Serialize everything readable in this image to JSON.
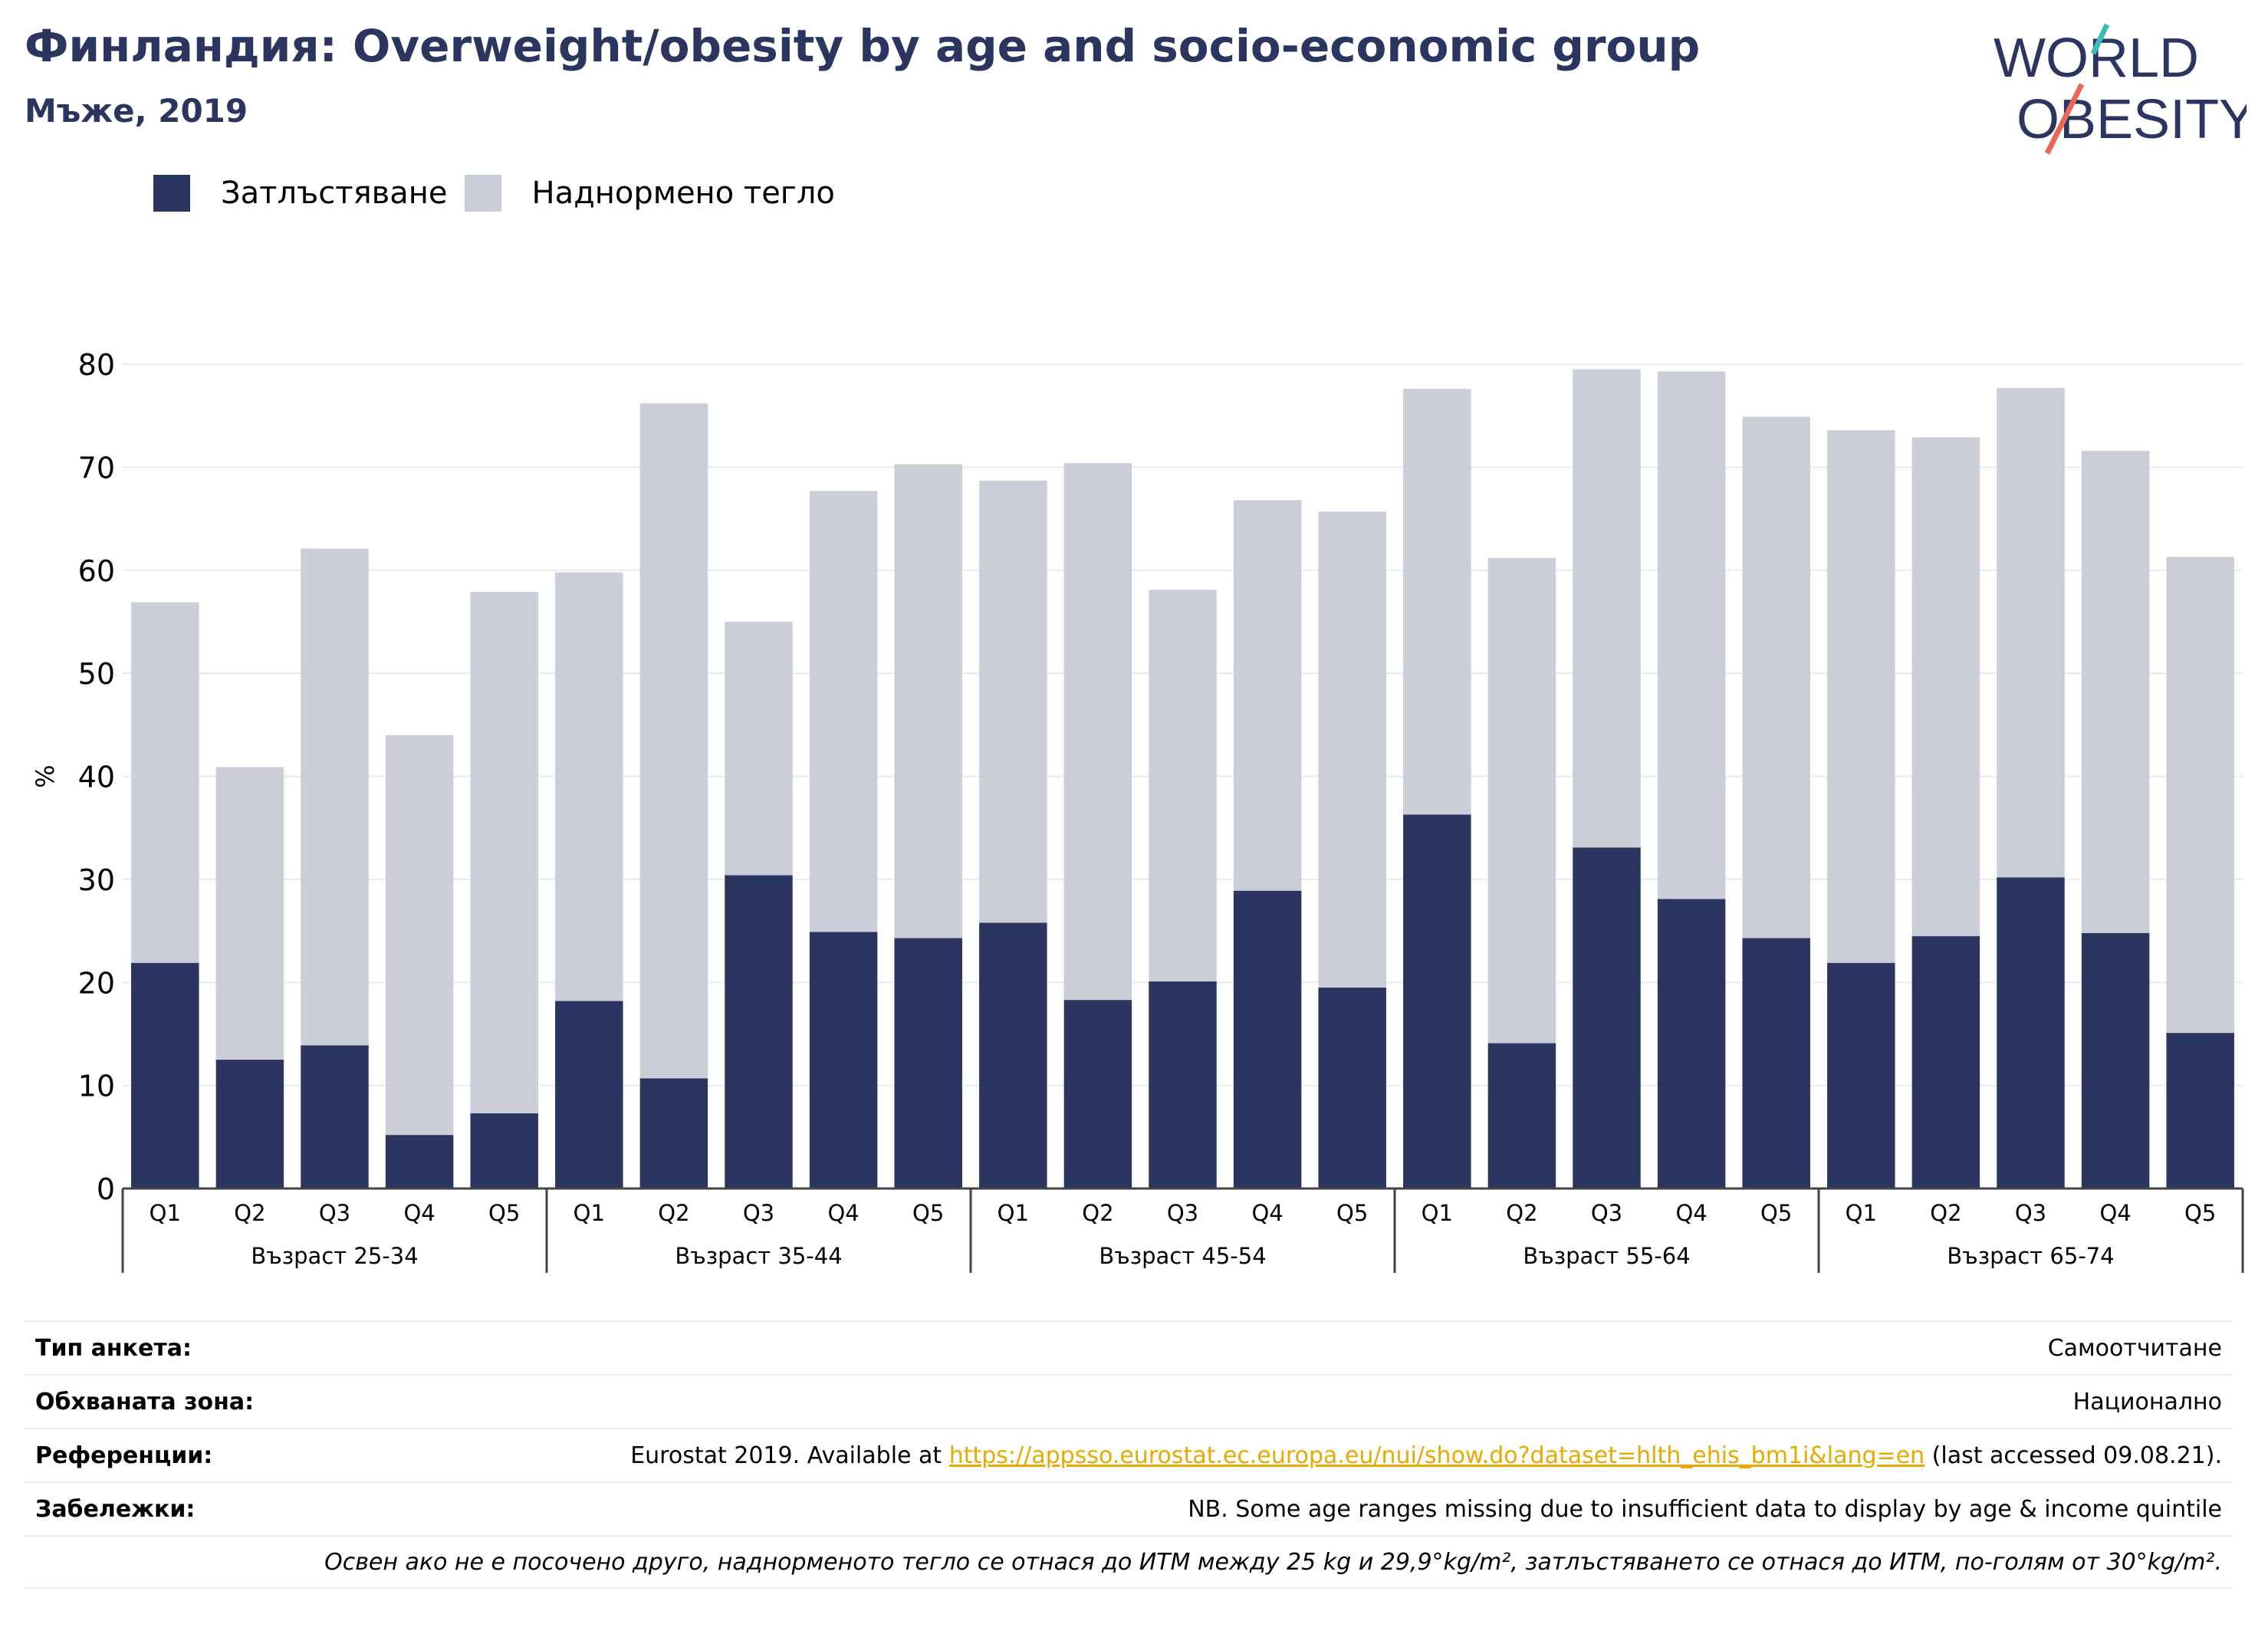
{
  "header": {
    "title": "Финландия: Overweight/obesity by age and socio-economic group",
    "subtitle": "Мъже, 2019"
  },
  "logo": {
    "line1": "WORLD",
    "line2": "OBESITY"
  },
  "colors": {
    "obesity": "#2a3560",
    "overweight": "#cbcdd9",
    "accent_teal": "#3dbdb7",
    "accent_red": "#e8665a",
    "link": "#e8a900"
  },
  "chart_data": {
    "type": "bar",
    "stacked": true,
    "ylabel": "%",
    "ylim": [
      0,
      80
    ],
    "yticks": [
      0,
      10,
      20,
      30,
      40,
      50,
      60,
      70,
      80
    ],
    "grid": true,
    "legend_position": "top-left",
    "groups": [
      {
        "label": "Възраст 25-34",
        "categories": [
          "Q1",
          "Q2",
          "Q3",
          "Q4",
          "Q5"
        ]
      },
      {
        "label": "Възраст 35-44",
        "categories": [
          "Q1",
          "Q2",
          "Q3",
          "Q4",
          "Q5"
        ]
      },
      {
        "label": "Възраст 45-54",
        "categories": [
          "Q1",
          "Q2",
          "Q3",
          "Q4",
          "Q5"
        ]
      },
      {
        "label": "Възраст 55-64",
        "categories": [
          "Q1",
          "Q2",
          "Q3",
          "Q4",
          "Q5"
        ]
      },
      {
        "label": "Възраст 65-74",
        "categories": [
          "Q1",
          "Q2",
          "Q3",
          "Q4",
          "Q5"
        ]
      }
    ],
    "series": [
      {
        "name": "Затлъстяване",
        "values": [
          21.9,
          12.5,
          13.9,
          5.2,
          7.3,
          18.2,
          10.7,
          30.4,
          24.9,
          24.3,
          25.8,
          18.3,
          20.1,
          28.9,
          19.5,
          36.3,
          14.1,
          33.1,
          28.1,
          24.3,
          21.9,
          24.5,
          30.2,
          24.8,
          15.1
        ]
      },
      {
        "name": "Наднормено тегло",
        "values": [
          35.0,
          28.4,
          48.2,
          38.8,
          50.6,
          41.6,
          65.5,
          24.6,
          42.8,
          46.0,
          42.9,
          52.1,
          38.0,
          37.9,
          46.2,
          41.3,
          47.1,
          46.4,
          51.2,
          50.6,
          51.7,
          48.4,
          47.5,
          46.8,
          46.2
        ]
      }
    ]
  },
  "footer": {
    "rows": [
      {
        "key": "Тип анкета:",
        "value": "Самоотчитане"
      },
      {
        "key": "Обхваната зона:",
        "value": "Национално"
      },
      {
        "key": "Референции:",
        "value_pre": "Eurostat 2019. Available at ",
        "link": "https://appsso.eurostat.ec.europa.eu/nui/show.do?dataset=hlth_ehis_bm1i&lang=en",
        "value_post": " (last accessed 09.08.21)."
      },
      {
        "key": "Забележки:",
        "value": "NB. Some age ranges missing due to insufficient data to display by age & income quintile"
      }
    ],
    "note": "Освен ако не е посочено друго, наднорменото тегло се отнася до ИТМ между 25 kg и 29,9°kg/m², затлъстяването се отнася до ИТМ, по-голям от 30°kg/m²."
  }
}
